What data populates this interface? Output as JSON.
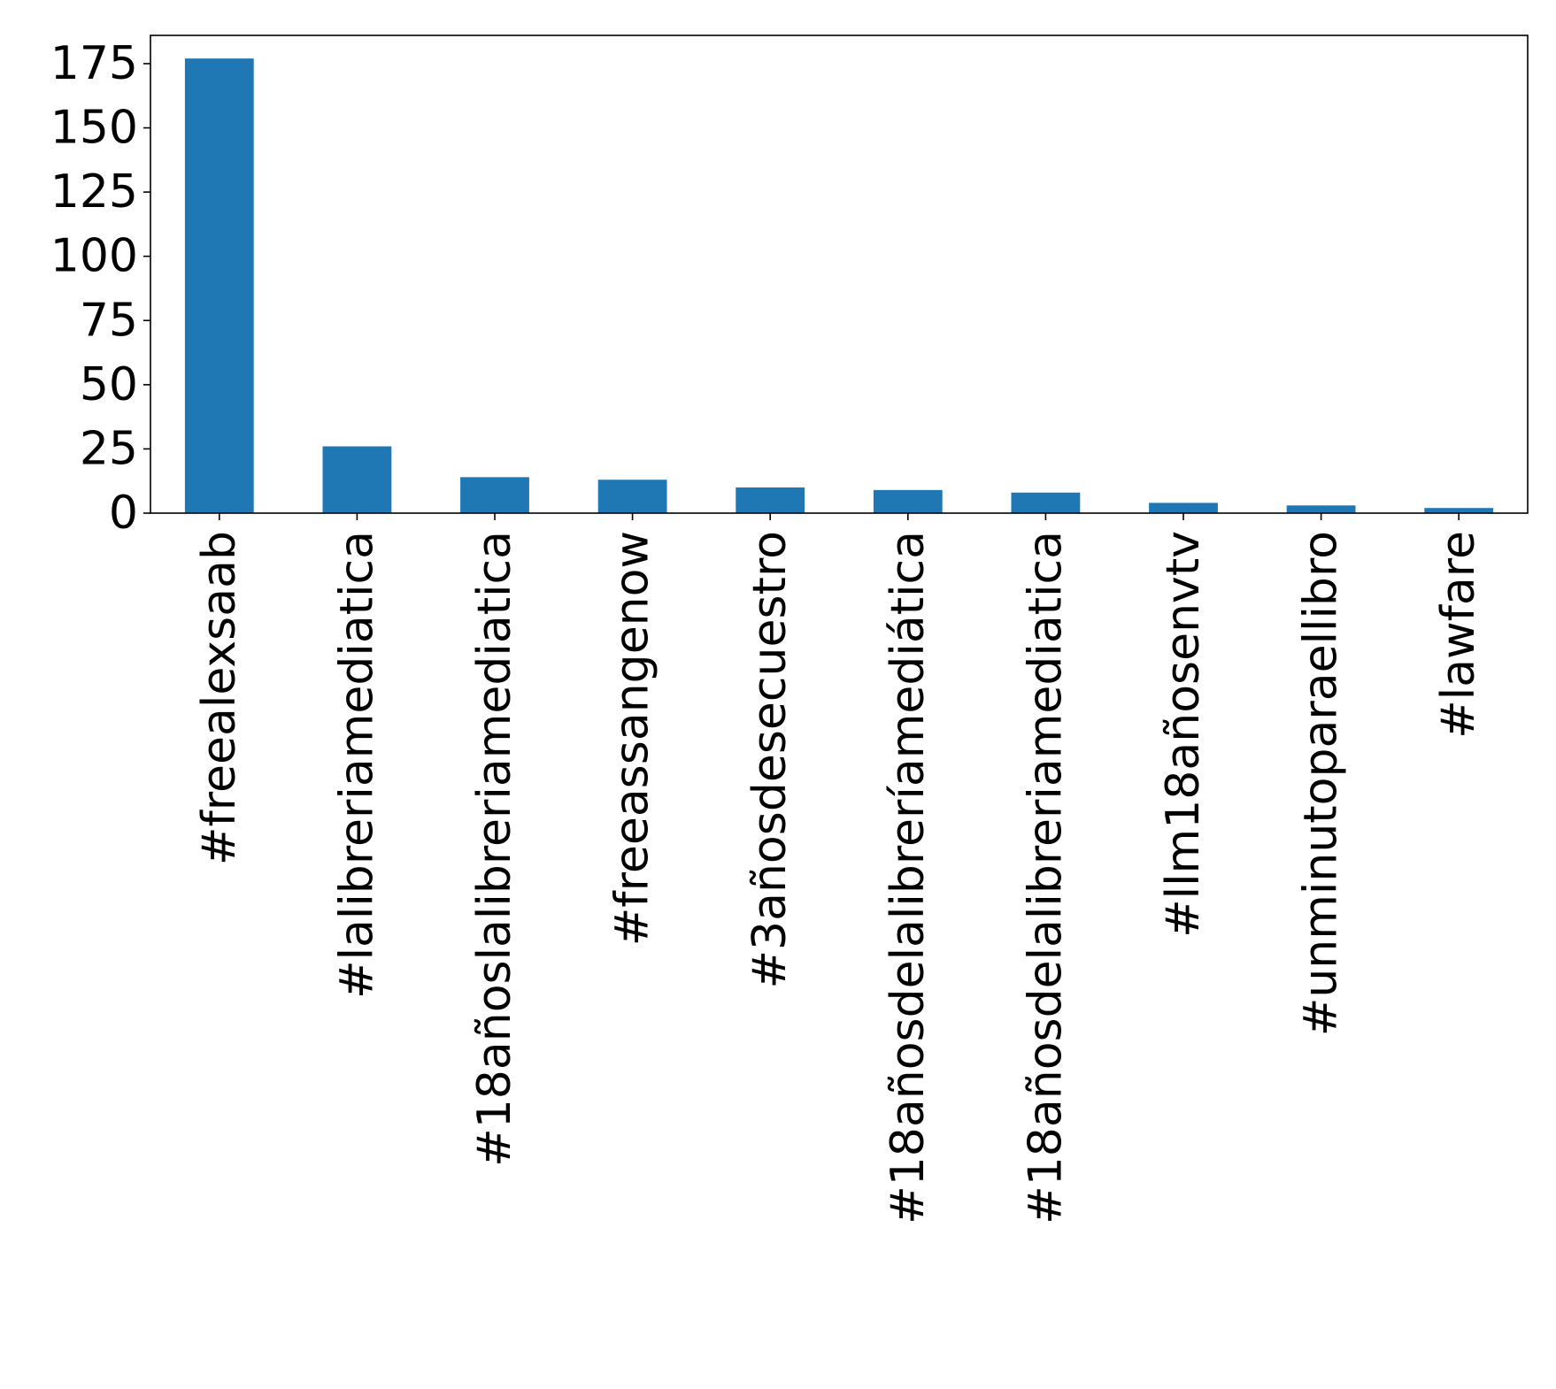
{
  "chart_data": {
    "type": "bar",
    "title": "",
    "xlabel": "",
    "ylabel": "",
    "categories": [
      "#freealexsaab",
      "#lalibreriamediatica",
      "#18añoslalibreriamediatica",
      "#freeassangenow",
      "#3añosdesecuestro",
      "#18añosdelalibreríamediática",
      "#18añosdelalibreriamediatica",
      "#llm18añosenvtv",
      "#unminutoparaellibro",
      "#lawfare"
    ],
    "values": [
      177,
      26,
      14,
      13,
      10,
      9,
      8,
      4,
      3,
      2
    ],
    "ylim": [
      0,
      186
    ],
    "yticks": [
      0,
      25,
      50,
      75,
      100,
      125,
      150,
      175
    ],
    "grid": false,
    "legend": "none",
    "bar_color": "#1f77b4"
  }
}
